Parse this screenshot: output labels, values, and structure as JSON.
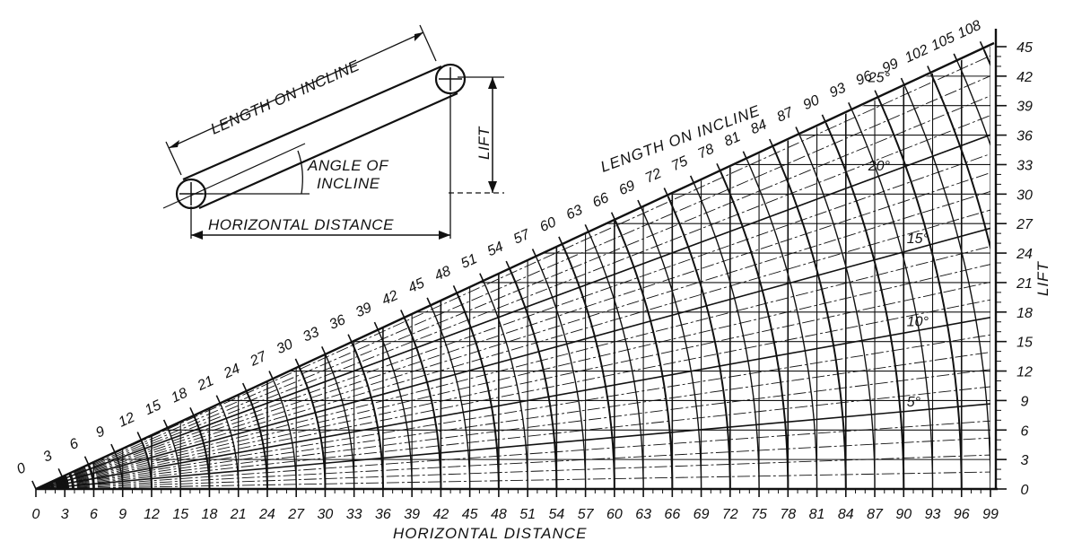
{
  "figure": {
    "inset": {
      "length_on_incline_label": "LENGTH ON INCLINE",
      "angle_label_line1": "ANGLE OF",
      "angle_label_line2": "INCLINE",
      "horizontal_distance_label": "HORIZONTAL DISTANCE",
      "lift_label": "LIFT"
    },
    "horizontal_axis_title": "HORIZONTAL DISTANCE",
    "lift_axis_title": "LIFT",
    "incline_scale_title": "LENGTH ON INCLINE",
    "horizontal_ticks": [
      "0",
      "3",
      "6",
      "9",
      "12",
      "15",
      "18",
      "21",
      "24",
      "27",
      "30",
      "33",
      "36",
      "39",
      "42",
      "45",
      "48",
      "51",
      "54",
      "57",
      "60",
      "63",
      "66",
      "69",
      "72",
      "75",
      "78",
      "81",
      "84",
      "87",
      "90",
      "93",
      "96",
      "99"
    ],
    "lift_ticks": [
      "0",
      "3",
      "6",
      "9",
      "12",
      "15",
      "18",
      "21",
      "24",
      "27",
      "30",
      "33",
      "36",
      "39",
      "42",
      "45"
    ],
    "incline_ticks": [
      "0",
      "3",
      "6",
      "9",
      "12",
      "15",
      "18",
      "21",
      "24",
      "27",
      "30",
      "33",
      "36",
      "39",
      "42",
      "45",
      "48",
      "51",
      "54",
      "57",
      "60",
      "63",
      "66",
      "69",
      "72",
      "75",
      "78",
      "81",
      "84",
      "87",
      "90",
      "93",
      "96",
      "99",
      "102",
      "105",
      "108"
    ],
    "angle_labels": [
      "5°",
      "10°",
      "15°",
      "20°",
      "25°"
    ]
  }
}
